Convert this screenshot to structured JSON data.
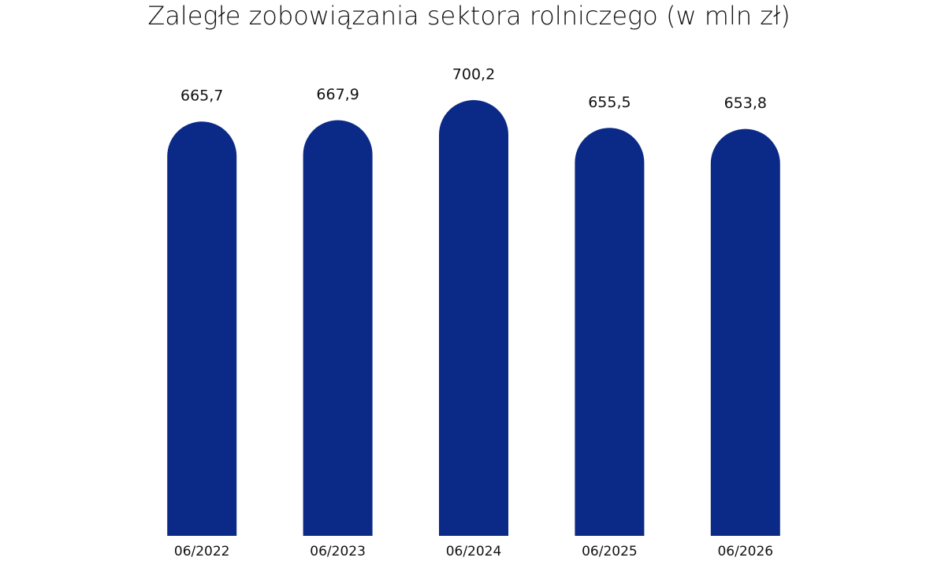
{
  "chart_data": {
    "type": "bar",
    "title": "Zaległe zobowiązania sektora rolniczego (w mln zł)",
    "categories": [
      "06/2022",
      "06/2023",
      "06/2024",
      "06/2025",
      "06/2026"
    ],
    "values": [
      665.7,
      667.9,
      700.2,
      655.5,
      653.8
    ],
    "value_labels": [
      "665,7",
      "667,9",
      "700,2",
      "655,5",
      "653,8"
    ],
    "color": "#0b2a88"
  }
}
